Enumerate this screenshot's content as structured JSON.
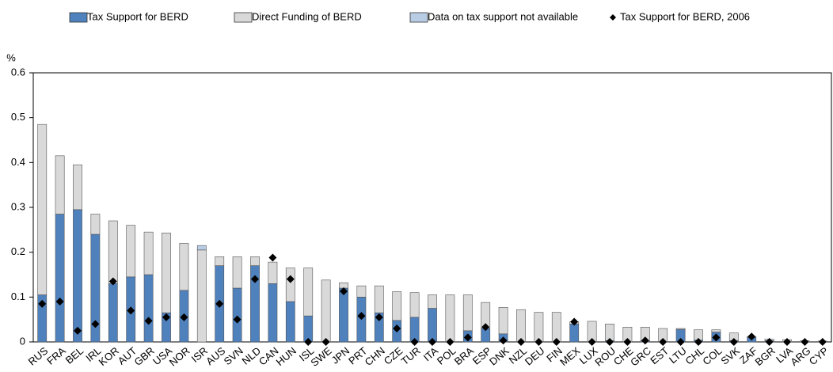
{
  "chart_data": {
    "type": "bar",
    "stacked": true,
    "y_unit": "%",
    "categories": [
      "RUS",
      "FRA",
      "BEL",
      "IRL",
      "KOR",
      "AUT",
      "GBR",
      "USA",
      "NOR",
      "ISR",
      "AUS",
      "SVN",
      "NLD",
      "CAN",
      "HUN",
      "ISL",
      "SWE",
      "JPN",
      "PRT",
      "CHN",
      "CZE",
      "TUR",
      "ITA",
      "POL",
      "BRA",
      "ESP",
      "DNK",
      "NZL",
      "DEU",
      "FIN",
      "MEX",
      "LUX",
      "ROU",
      "CHE",
      "GRC",
      "EST",
      "LTU",
      "CHL",
      "COL",
      "SVK",
      "ZAF",
      "BGR",
      "LVA",
      "ARG",
      "CYP"
    ],
    "series": [
      {
        "name": "Tax Support for BERD",
        "color": "#4f81bd",
        "kind": "bar",
        "values": [
          0.105,
          0.285,
          0.295,
          0.24,
          0.13,
          0.145,
          0.15,
          0.065,
          0.115,
          0,
          0.17,
          0.12,
          0.17,
          0.13,
          0.09,
          0.058,
          0,
          0.12,
          0.1,
          0.065,
          0.048,
          0.055,
          0.075,
          0,
          0.025,
          0.03,
          0.018,
          0,
          0,
          0,
          0.04,
          0,
          0.003,
          0,
          0.003,
          0,
          0.028,
          0.004,
          0.022,
          0.003,
          0.01,
          0.003,
          0,
          0,
          0
        ]
      },
      {
        "name": "Direct Funding of BERD",
        "color": "#d9d9d9",
        "kind": "bar",
        "values": [
          0.38,
          0.13,
          0.1,
          0.045,
          0.14,
          0.115,
          0.095,
          0.178,
          0.105,
          0.205,
          0.02,
          0.07,
          0.02,
          0.048,
          0.075,
          0.107,
          0.138,
          0.012,
          0.025,
          0.06,
          0.064,
          0.055,
          0.03,
          0.105,
          0.08,
          0.058,
          0.059,
          0.072,
          0.066,
          0.066,
          0.005,
          0.046,
          0.037,
          0.033,
          0.03,
          0.03,
          0.002,
          0.023,
          0.005,
          0.017,
          0.002,
          0.003,
          0.005,
          0.003,
          0.002
        ]
      },
      {
        "name": "Data on tax support not available",
        "color": "#b8cce4",
        "kind": "bar",
        "values": [
          0,
          0,
          0,
          0,
          0,
          0,
          0,
          0,
          0,
          0.01,
          0,
          0,
          0,
          0,
          0,
          0,
          0,
          0,
          0,
          0,
          0,
          0,
          0,
          0,
          0,
          0,
          0,
          0,
          0,
          0,
          0,
          0,
          0,
          0,
          0,
          0,
          0,
          0,
          0,
          0,
          0,
          0,
          0,
          0,
          0
        ]
      },
      {
        "name": "Tax Support for BERD, 2006",
        "color": "#000000",
        "kind": "marker",
        "values": [
          0.085,
          0.09,
          0.025,
          0.04,
          0.135,
          0.07,
          0.047,
          0.055,
          0.055,
          null,
          0.085,
          0.05,
          0.14,
          0.188,
          0.14,
          0,
          0,
          0.113,
          0.058,
          0.055,
          0.03,
          0,
          0,
          0,
          0.01,
          0.033,
          0.003,
          0,
          0,
          0,
          0.045,
          0,
          0,
          0,
          0.003,
          0,
          0,
          0,
          0.01,
          0,
          0.012,
          0,
          0,
          0,
          0
        ]
      }
    ],
    "ylim": [
      0,
      0.6
    ],
    "yticks": [
      0,
      0.1,
      0.2,
      0.3,
      0.4,
      0.5,
      0.6
    ]
  }
}
